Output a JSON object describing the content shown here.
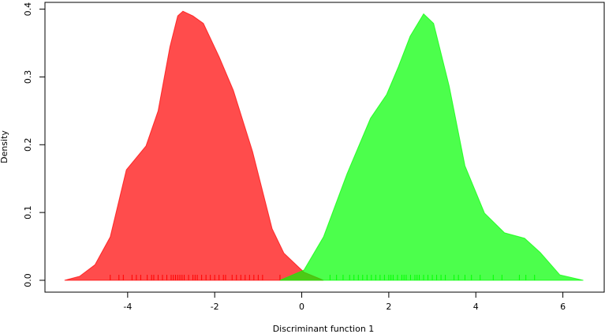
{
  "chart_data": {
    "type": "density",
    "xlabel": "Discriminant function 1",
    "ylabel": "Density",
    "xlim": [
      -5.9,
      6.95
    ],
    "ylim": [
      -0.0175,
      0.41
    ],
    "xticks": [
      -4,
      -2,
      0,
      2,
      4,
      6
    ],
    "yticks": [
      {
        "value": 0,
        "label": "0.0"
      },
      0.1,
      0.2,
      0.3,
      0.4
    ],
    "opacity": 0.7,
    "series": [
      {
        "color": "#ff0000",
        "x": [
          -5.45,
          -5.1,
          -4.75,
          -4.4,
          -4.03,
          -3.58,
          -3.3,
          -3.03,
          -2.85,
          -2.73,
          -2.5,
          -2.26,
          -1.9,
          -1.57,
          -1.13,
          -0.68,
          -0.41,
          0.05,
          0.5
        ],
        "values": [
          0,
          0.006,
          0.023,
          0.064,
          0.163,
          0.198,
          0.25,
          0.344,
          0.39,
          0.397,
          0.39,
          0.379,
          0.33,
          0.28,
          0.19,
          0.076,
          0.04,
          0.012,
          0
        ],
        "rug": [
          -4.4,
          -4.2,
          -4.1,
          -3.9,
          -3.8,
          -3.7,
          -3.55,
          -3.45,
          -3.4,
          -3.3,
          -3.2,
          -3.1,
          -3.0,
          -2.95,
          -2.9,
          -2.85,
          -2.8,
          -2.75,
          -2.7,
          -2.6,
          -2.5,
          -2.45,
          -2.4,
          -2.3,
          -2.2,
          -2.1,
          -2.0,
          -1.9,
          -1.8,
          -1.75,
          -1.6,
          -1.5,
          -1.4,
          -1.3,
          -1.2,
          -1.1,
          -1.0,
          -0.9,
          -0.5
        ]
      },
      {
        "color": "#00ff00",
        "x": [
          -0.5,
          0.05,
          0.5,
          1.04,
          1.58,
          1.95,
          2.22,
          2.49,
          2.8,
          3.03,
          3.39,
          3.75,
          4.2,
          4.66,
          5.12,
          5.48,
          5.93,
          6.47
        ],
        "values": [
          0,
          0.015,
          0.064,
          0.157,
          0.239,
          0.274,
          0.315,
          0.36,
          0.393,
          0.379,
          0.286,
          0.169,
          0.099,
          0.07,
          0.062,
          0.041,
          0.008,
          0
        ],
        "rug": [
          0.65,
          0.8,
          0.95,
          1.1,
          1.2,
          1.3,
          1.4,
          1.5,
          1.6,
          1.7,
          1.8,
          1.9,
          2.0,
          2.05,
          2.1,
          2.2,
          2.3,
          2.35,
          2.4,
          2.5,
          2.6,
          2.65,
          2.7,
          2.8,
          2.9,
          3.0,
          3.1,
          3.2,
          3.3,
          3.5,
          3.6,
          3.75,
          3.9,
          4.1,
          4.4,
          4.6,
          5.0,
          5.15,
          5.35
        ]
      }
    ]
  }
}
